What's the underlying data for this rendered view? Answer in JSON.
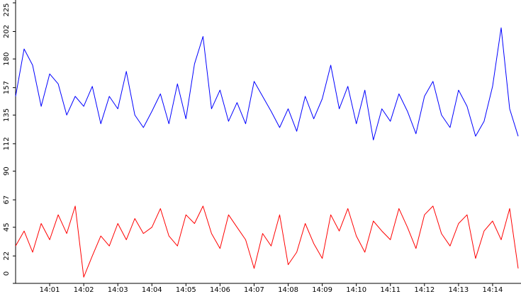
{
  "chart_data": {
    "type": "line",
    "grid": false,
    "legend": "none",
    "xlim": [
      "14:00:00",
      "14:14:45"
    ],
    "ylim": [
      0,
      225
    ],
    "y_ticks": [
      "225",
      "202",
      "180",
      "157",
      "135",
      "112",
      "90",
      "67",
      "45",
      "22",
      "0"
    ],
    "y_tick_values": [
      225,
      202,
      180,
      157,
      135,
      112,
      90,
      67,
      45,
      22,
      0
    ],
    "x_ticks": [
      "14:01",
      "14:02",
      "14:03",
      "14:04",
      "14:05",
      "14:06",
      "14:07",
      "14:08",
      "14:09",
      "14:10",
      "14:11",
      "14:12",
      "14:13",
      "14:14"
    ],
    "x_tick_values": [
      "14:01:00",
      "14:02:00",
      "14:03:00",
      "14:04:00",
      "14:05:00",
      "14:06:00",
      "14:07:00",
      "14:08:00",
      "14:09:00",
      "14:10:00",
      "14:11:00",
      "14:12:00",
      "14:13:00",
      "14:14:00"
    ],
    "series": [
      {
        "color": "#0000ff",
        "x": [
          "14:00:00",
          "14:00:15",
          "14:00:30",
          "14:00:45",
          "14:01:00",
          "14:01:15",
          "14:01:30",
          "14:01:45",
          "14:02:00",
          "14:02:15",
          "14:02:30",
          "14:02:45",
          "14:03:00",
          "14:03:15",
          "14:03:30",
          "14:03:45",
          "14:04:00",
          "14:04:15",
          "14:04:30",
          "14:04:45",
          "14:05:00",
          "14:05:15",
          "14:05:30",
          "14:05:45",
          "14:06:00",
          "14:06:15",
          "14:06:30",
          "14:06:45",
          "14:07:00",
          "14:07:15",
          "14:07:30",
          "14:07:45",
          "14:08:00",
          "14:08:15",
          "14:08:30",
          "14:08:45",
          "14:09:00",
          "14:09:15",
          "14:09:30",
          "14:09:45",
          "14:10:00",
          "14:10:15",
          "14:10:30",
          "14:10:45",
          "14:11:00",
          "14:11:15",
          "14:11:30",
          "14:11:45",
          "14:12:00",
          "14:12:15",
          "14:12:30",
          "14:12:45",
          "14:13:00",
          "14:13:15",
          "14:13:30",
          "14:13:45",
          "14:14:00",
          "14:14:15",
          "14:14:30",
          "14:14:45"
        ],
        "values": [
          150,
          188,
          175,
          142,
          168,
          160,
          135,
          150,
          142,
          158,
          128,
          150,
          140,
          170,
          135,
          125,
          138,
          152,
          128,
          160,
          132,
          176,
          198,
          140,
          155,
          130,
          145,
          128,
          162,
          150,
          138,
          125,
          140,
          122,
          150,
          132,
          148,
          175,
          140,
          158,
          128,
          155,
          115,
          140,
          130,
          152,
          138,
          120,
          150,
          162,
          135,
          125,
          155,
          142,
          118,
          130,
          158,
          205,
          140,
          118
        ]
      },
      {
        "color": "#ff0000",
        "x": [
          "14:00:00",
          "14:00:15",
          "14:00:30",
          "14:00:45",
          "14:01:00",
          "14:01:15",
          "14:01:30",
          "14:01:45",
          "14:02:00",
          "14:02:15",
          "14:02:30",
          "14:02:45",
          "14:03:00",
          "14:03:15",
          "14:03:30",
          "14:03:45",
          "14:04:00",
          "14:04:15",
          "14:04:30",
          "14:04:45",
          "14:05:00",
          "14:05:15",
          "14:05:30",
          "14:05:45",
          "14:06:00",
          "14:06:15",
          "14:06:30",
          "14:06:45",
          "14:07:00",
          "14:07:15",
          "14:07:30",
          "14:07:45",
          "14:08:00",
          "14:08:15",
          "14:08:30",
          "14:08:45",
          "14:09:00",
          "14:09:15",
          "14:09:30",
          "14:09:45",
          "14:10:00",
          "14:10:15",
          "14:10:30",
          "14:10:45",
          "14:11:00",
          "14:11:15",
          "14:11:30",
          "14:11:45",
          "14:12:00",
          "14:12:15",
          "14:12:30",
          "14:12:45",
          "14:13:00",
          "14:13:15",
          "14:13:30",
          "14:13:45",
          "14:14:00",
          "14:14:15",
          "14:14:30",
          "14:14:45"
        ],
        "values": [
          30,
          42,
          25,
          48,
          35,
          55,
          40,
          62,
          5,
          22,
          38,
          30,
          48,
          35,
          52,
          40,
          45,
          60,
          38,
          30,
          55,
          48,
          62,
          40,
          28,
          55,
          45,
          35,
          12,
          40,
          30,
          55,
          15,
          25,
          48,
          32,
          20,
          55,
          42,
          60,
          38,
          25,
          50,
          42,
          35,
          60,
          45,
          28,
          55,
          62,
          40,
          30,
          48,
          55,
          20,
          42,
          50,
          35,
          60,
          12
        ]
      }
    ]
  }
}
